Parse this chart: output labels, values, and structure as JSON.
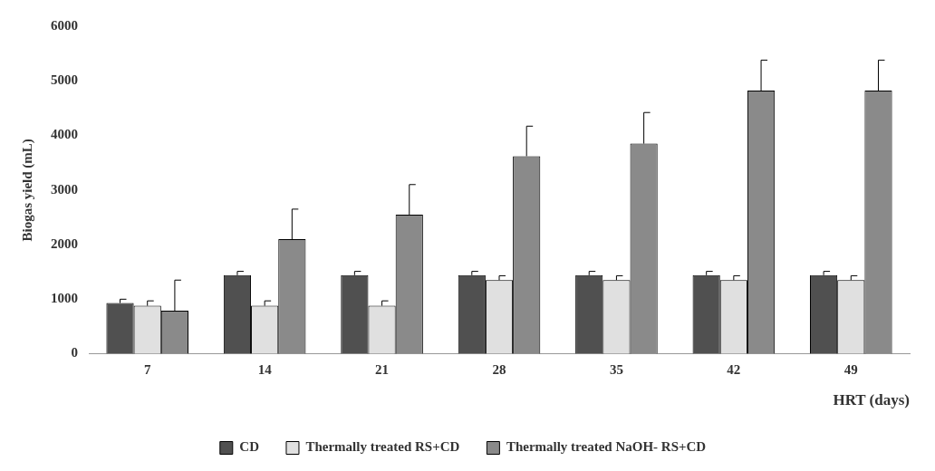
{
  "chart_data": {
    "type": "bar",
    "xlabel": "HRT (days)",
    "ylabel": "Biogas yield (mL)",
    "categories": [
      "7",
      "14",
      "21",
      "28",
      "35",
      "42",
      "49"
    ],
    "series": [
      {
        "name": "CD",
        "color": "#505050",
        "values": [
          930,
          1440,
          1440,
          1440,
          1440,
          1440,
          1440
        ],
        "errors": [
          [
            930,
            1000
          ],
          [
            1440,
            1510
          ],
          [
            1440,
            1510
          ],
          [
            1440,
            1510
          ],
          [
            1440,
            1510
          ],
          [
            1440,
            1510
          ],
          [
            1440,
            1510
          ]
        ]
      },
      {
        "name": "Thermally treated RS+CD",
        "color": "#e0e0e0",
        "values": [
          880,
          880,
          880,
          1350,
          1350,
          1350,
          1350
        ],
        "errors": [
          [
            880,
            970
          ],
          [
            880,
            970
          ],
          [
            880,
            970
          ],
          [
            1350,
            1430
          ],
          [
            1350,
            1430
          ],
          [
            1350,
            1430
          ],
          [
            1350,
            1430
          ]
        ]
      },
      {
        "name": "Thermally treated NaOH- RS+CD",
        "color": "#8a8a8a",
        "values": [
          790,
          2100,
          2550,
          3620,
          3850,
          4820,
          4820
        ],
        "errors": [
          [
            790,
            1350
          ],
          [
            2100,
            2650
          ],
          [
            2550,
            3100
          ],
          [
            3620,
            4170
          ],
          [
            3850,
            4420
          ],
          [
            4820,
            5380
          ],
          [
            4820,
            5380
          ]
        ]
      }
    ],
    "ylim": [
      0,
      6000
    ],
    "yticks": [
      0,
      1000,
      2000,
      3000,
      4000,
      5000,
      6000
    ],
    "grid": false,
    "legend": "bottom"
  }
}
